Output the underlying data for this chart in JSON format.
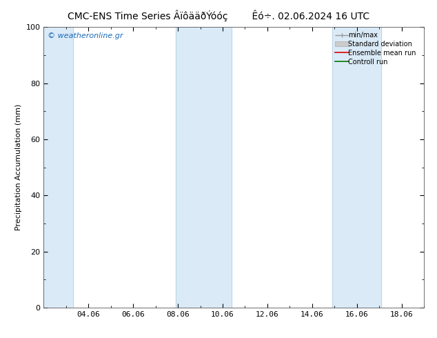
{
  "title": "CMC-ENS Time Series ÂïôääðÝóóç        Êó÷. 02.06.2024 16 UTC",
  "ylabel": "Precipitation Accumulation (mm)",
  "watermark": "© weatheronline.gr",
  "ylim": [
    0,
    100
  ],
  "yticks": [
    0,
    20,
    40,
    60,
    80,
    100
  ],
  "xlim": [
    2.0,
    19.0
  ],
  "xtick_labels": [
    "04.06",
    "06.06",
    "08.06",
    "10.06",
    "12.06",
    "14.06",
    "16.06",
    "18.06"
  ],
  "xtick_positions_days": [
    4,
    6,
    8,
    10,
    12,
    14,
    16,
    18
  ],
  "shaded_bands": [
    {
      "x_start_day": 2.0,
      "x_end_day": 3.3,
      "color": "#daeaf7"
    },
    {
      "x_start_day": 7.9,
      "x_end_day": 10.4,
      "color": "#daeaf7"
    },
    {
      "x_start_day": 14.9,
      "x_end_day": 17.1,
      "color": "#daeaf7"
    }
  ],
  "legend_labels": [
    "min/max",
    "Standard deviation",
    "Ensemble mean run",
    "Controll run"
  ],
  "background_color": "#ffffff",
  "title_fontsize": 10,
  "tick_fontsize": 8,
  "label_fontsize": 8,
  "watermark_color": "#1a6ab5",
  "axis_color": "#555555",
  "band_line_color": "#b0cce0"
}
